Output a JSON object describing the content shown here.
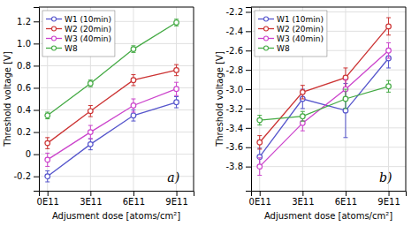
{
  "chart_data": [
    {
      "type": "line",
      "x": [
        0,
        300000000000,
        600000000000,
        900000000000
      ],
      "xlabel": "Adjusment dose [atoms/cm²]",
      "ylabel": "Threshold voltage [V]",
      "xlim": [
        -60000000000,
        1020000000000
      ],
      "xticks": [
        {
          "value": 0,
          "label": "0E11"
        },
        {
          "value": 300000000000,
          "label": "3E11"
        },
        {
          "value": 600000000000,
          "label": "6E11"
        },
        {
          "value": 900000000000,
          "label": "9E11"
        }
      ],
      "ylim": [
        -0.33,
        1.33
      ],
      "yticks": [
        -0.2,
        0,
        0.2,
        0.4,
        0.6,
        0.8,
        {
          "value": 1.0,
          "label": "1.0"
        },
        1.2
      ],
      "grid": true,
      "legend": "upper left",
      "marker": "circle",
      "annotation": "a)",
      "series": [
        {
          "name": "W1 (10min)",
          "color": "#5555cc",
          "values": [
            -0.2,
            0.09,
            0.35,
            0.47
          ],
          "errors": [
            0.05,
            0.05,
            0.05,
            0.05
          ]
        },
        {
          "name": "W2 (20min)",
          "color": "#cc3333",
          "values": [
            0.1,
            0.39,
            0.67,
            0.76
          ],
          "errors": [
            0.05,
            0.05,
            0.05,
            0.05
          ]
        },
        {
          "name": "W3 (40min)",
          "color": "#cc44cc",
          "values": [
            -0.05,
            0.2,
            0.44,
            0.59
          ],
          "errors": [
            0.06,
            0.06,
            0.06,
            0.06
          ]
        },
        {
          "name": "W8",
          "color": "#44aa44",
          "values": [
            0.35,
            0.64,
            0.95,
            1.19
          ],
          "errors": [
            0.03,
            0.03,
            0.03,
            0.03
          ]
        }
      ]
    },
    {
      "type": "line",
      "x": [
        0,
        300000000000,
        600000000000,
        900000000000
      ],
      "xlabel": "Adjusment dose [atoms/cm²]",
      "ylabel": "Threshold voltage [V]",
      "xlim": [
        -60000000000,
        1020000000000
      ],
      "xticks": [
        {
          "value": 0,
          "label": "0E11"
        },
        {
          "value": 300000000000,
          "label": "3E11"
        },
        {
          "value": 600000000000,
          "label": "6E11"
        },
        {
          "value": 900000000000,
          "label": "9E11"
        }
      ],
      "ylim": [
        -4.05,
        -2.15
      ],
      "yticks": [
        -3.8,
        -3.6,
        -3.4,
        -3.2,
        {
          "value": -3.0,
          "label": "-3.0"
        },
        -2.8,
        -2.6,
        -2.4,
        -2.2
      ],
      "grid": true,
      "legend": "upper left",
      "marker": "circle",
      "annotation": "b)",
      "series": [
        {
          "name": "W1 (10min)",
          "color": "#5555cc",
          "values": [
            -3.7,
            -3.1,
            -3.22,
            -2.68
          ],
          "errors": [
            0.09,
            0.1,
            0.28,
            0.1
          ]
        },
        {
          "name": "W2 (20min)",
          "color": "#cc3333",
          "values": [
            -3.55,
            -3.03,
            -2.88,
            -2.35
          ],
          "errors": [
            0.07,
            0.07,
            0.1,
            0.09
          ]
        },
        {
          "name": "W3 (40min)",
          "color": "#cc44cc",
          "values": [
            -3.8,
            -3.35,
            -3.0,
            -2.6
          ],
          "errors": [
            0.09,
            0.08,
            0.1,
            0.08
          ]
        },
        {
          "name": "W8",
          "color": "#44aa44",
          "values": [
            -3.32,
            -3.28,
            -3.1,
            -2.97
          ],
          "errors": [
            0.05,
            0.05,
            0.1,
            0.06
          ]
        }
      ]
    }
  ]
}
